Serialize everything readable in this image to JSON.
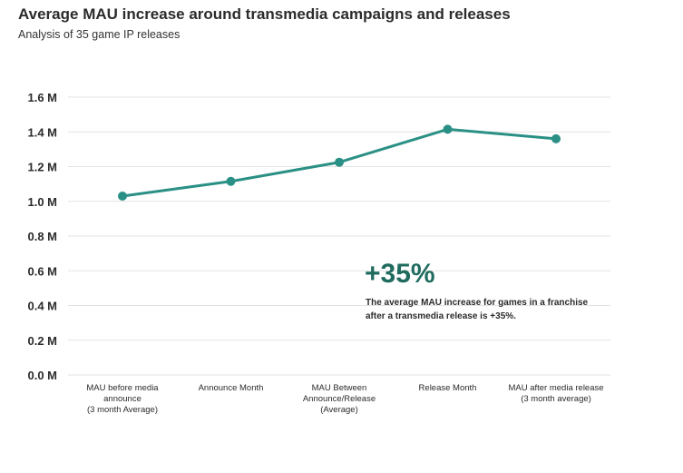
{
  "title": "Average MAU increase around transmedia campaigns and releases",
  "subtitle": "Analysis of 35 game IP releases",
  "callout": {
    "value": "+35%",
    "text": "The average MAU increase for games in a franchise after a transmedia release is +35%."
  },
  "colors": {
    "line": "#2a9085",
    "grid": "#e3e3e3",
    "callout": "#1f6b5e"
  },
  "chart_data": {
    "type": "line",
    "categories": [
      [
        "MAU before media",
        "announce",
        "(3 month Average)"
      ],
      [
        "Announce Month"
      ],
      [
        "MAU Between",
        "Announce/Release",
        "(Average)"
      ],
      [
        "Release Month"
      ],
      [
        "MAU after media release",
        "(3 month average)"
      ]
    ],
    "series": [
      {
        "values": [
          1.03,
          1.115,
          1.225,
          1.415,
          1.36
        ]
      }
    ],
    "yticks": [
      "0.0 M",
      "0.2 M",
      "0.4 M",
      "0.6 M",
      "0.8 M",
      "1.0 M",
      "1.2 M",
      "1.4 M",
      "1.6 M"
    ],
    "ylim": [
      0,
      1.6
    ],
    "grid": true,
    "legend": "none"
  }
}
